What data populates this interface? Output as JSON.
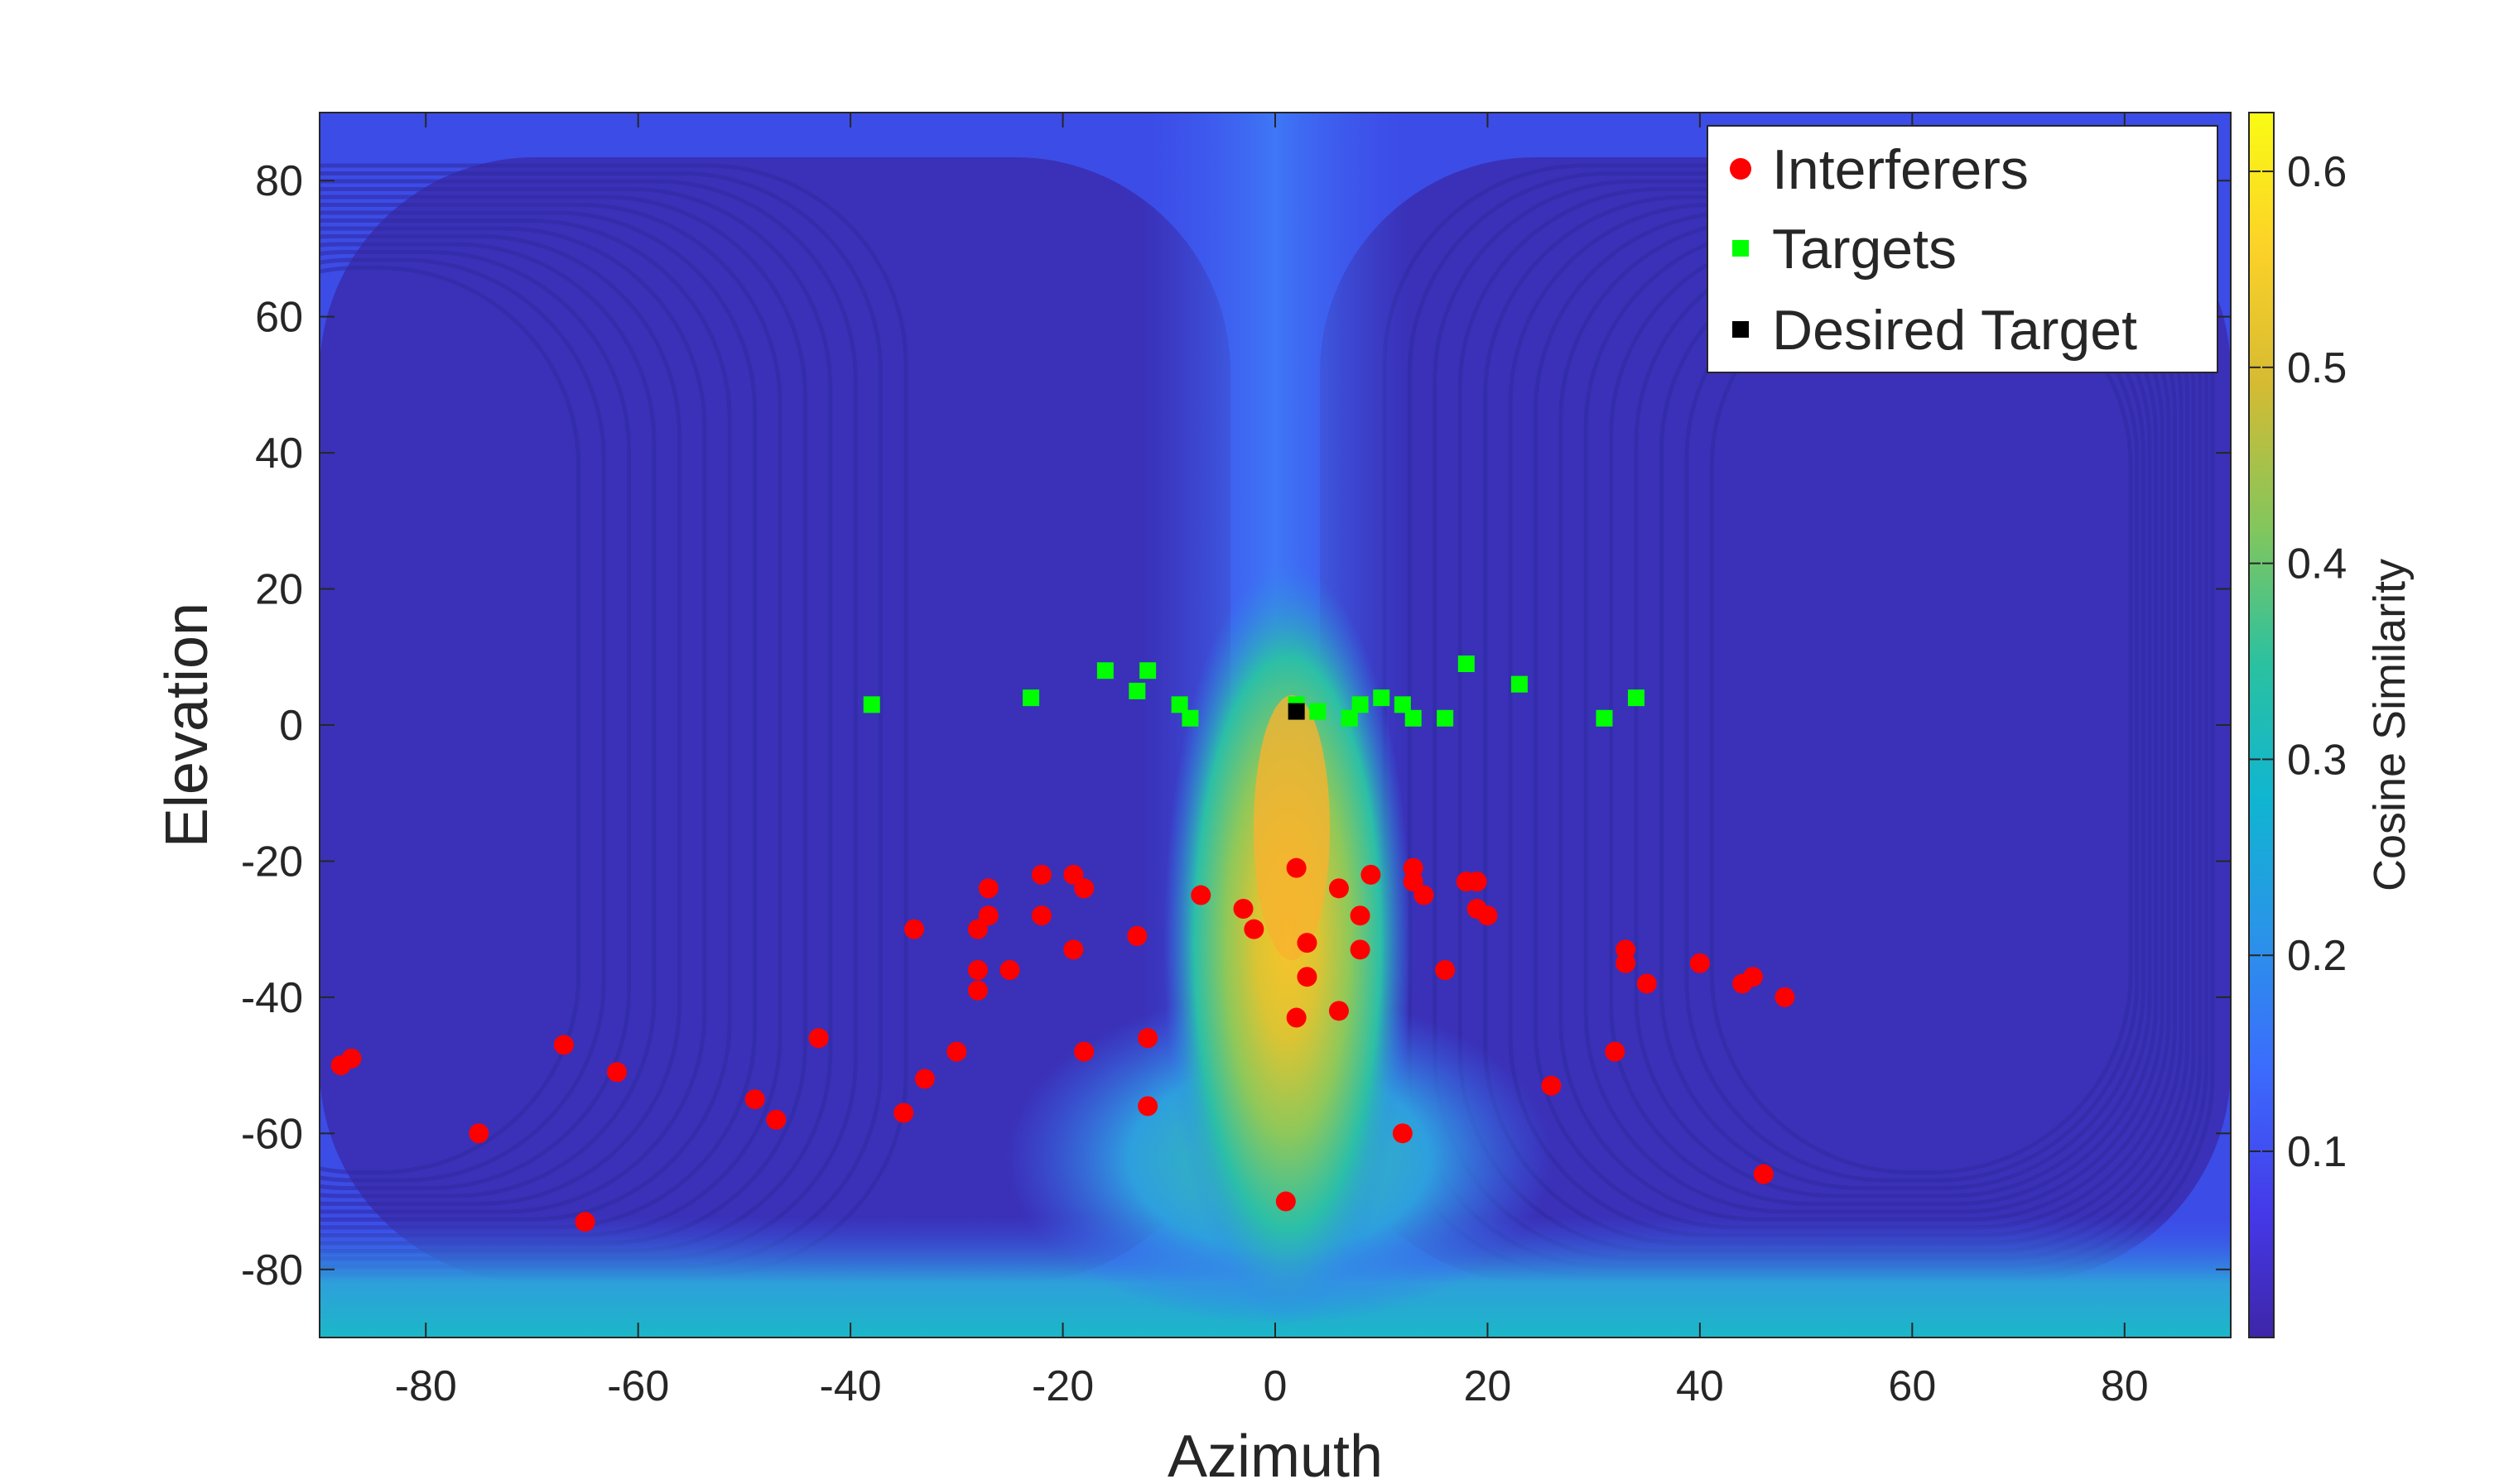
{
  "chart_data": {
    "type": "heatmap+scatter",
    "title": "",
    "xlabel": "Azimuth",
    "ylabel": "Elevation",
    "xlim": [
      -90,
      90
    ],
    "ylim": [
      -90,
      90
    ],
    "xticks": [
      -80,
      -60,
      -40,
      -20,
      0,
      20,
      40,
      60,
      80
    ],
    "yticks": [
      -80,
      -60,
      -40,
      -20,
      0,
      20,
      40,
      60,
      80
    ],
    "colorbar": {
      "label": "Cosine Similarity",
      "range": [
        0.005,
        0.63
      ],
      "ticks": [
        0.1,
        0.2,
        0.3,
        0.4,
        0.5,
        0.6
      ],
      "colormap": "parula"
    },
    "heatmap": {
      "description_values": "main-lobe peak near azimuth 2, elevation -15, cosine similarity about 0.63"
    },
    "legend": {
      "position": "top-right",
      "entries": [
        "Interferers",
        "Targets",
        "Desired Target"
      ]
    },
    "series": [
      {
        "name": "Interferers",
        "marker": "circle",
        "color": "#ff0000",
        "points": [
          [
            -88,
            -50
          ],
          [
            -87,
            -49
          ],
          [
            -75,
            -60
          ],
          [
            -67,
            -47
          ],
          [
            -65,
            -73
          ],
          [
            -62,
            -51
          ],
          [
            -49,
            -55
          ],
          [
            -47,
            -58
          ],
          [
            -43,
            -46
          ],
          [
            -35,
            -57
          ],
          [
            -34,
            -30
          ],
          [
            -33,
            -52
          ],
          [
            -30,
            -48
          ],
          [
            -28,
            -30
          ],
          [
            -28,
            -36
          ],
          [
            -28,
            -39
          ],
          [
            -27,
            -28
          ],
          [
            -27,
            -24
          ],
          [
            -25,
            -36
          ],
          [
            -22,
            -22
          ],
          [
            -22,
            -28
          ],
          [
            -19,
            -22
          ],
          [
            -19,
            -33
          ],
          [
            -18,
            -24
          ],
          [
            -18,
            -48
          ],
          [
            -13,
            -31
          ],
          [
            -12,
            -46
          ],
          [
            -12,
            -56
          ],
          [
            -7,
            -25
          ],
          [
            -3,
            -27
          ],
          [
            -2,
            -30
          ],
          [
            1,
            -70
          ],
          [
            2,
            -21
          ],
          [
            2,
            -43
          ],
          [
            3,
            -32
          ],
          [
            3,
            -37
          ],
          [
            6,
            -24
          ],
          [
            6,
            -42
          ],
          [
            8,
            -33
          ],
          [
            8,
            -28
          ],
          [
            9,
            -22
          ],
          [
            12,
            -60
          ],
          [
            13,
            -23
          ],
          [
            13,
            -21
          ],
          [
            14,
            -25
          ],
          [
            16,
            -36
          ],
          [
            18,
            -23
          ],
          [
            19,
            -23
          ],
          [
            19,
            -27
          ],
          [
            20,
            -28
          ],
          [
            26,
            -53
          ],
          [
            32,
            -48
          ],
          [
            33,
            -33
          ],
          [
            33,
            -35
          ],
          [
            35,
            -38
          ],
          [
            40,
            -35
          ],
          [
            44,
            -38
          ],
          [
            45,
            -37
          ],
          [
            46,
            -66
          ],
          [
            48,
            -40
          ]
        ]
      },
      {
        "name": "Targets",
        "marker": "square",
        "color": "#00ff00",
        "points": [
          [
            -38,
            3
          ],
          [
            -23,
            4
          ],
          [
            -16,
            8
          ],
          [
            -13,
            5
          ],
          [
            -12,
            8
          ],
          [
            -9,
            3
          ],
          [
            -8,
            1
          ],
          [
            2,
            3
          ],
          [
            4,
            2
          ],
          [
            7,
            1
          ],
          [
            8,
            3
          ],
          [
            10,
            4
          ],
          [
            12,
            3
          ],
          [
            13,
            1
          ],
          [
            16,
            1
          ],
          [
            18,
            9
          ],
          [
            23,
            6
          ],
          [
            31,
            1
          ],
          [
            34,
            4
          ]
        ]
      },
      {
        "name": "Desired Target",
        "marker": "square",
        "color": "#000000",
        "points": [
          [
            2,
            2
          ]
        ]
      }
    ]
  }
}
